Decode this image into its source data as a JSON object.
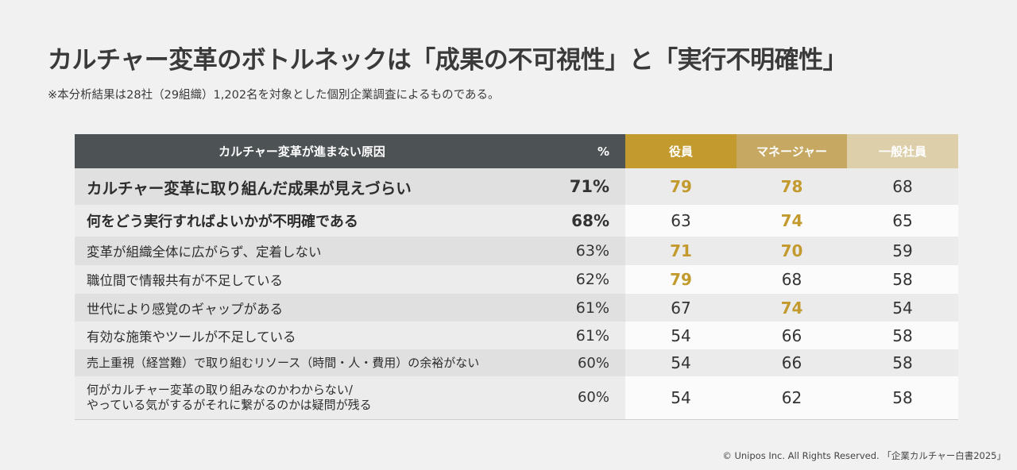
{
  "title": "カルチャー変革のボトルネックは「成果の不可視性」と「実行不明確性」",
  "note": "※本分析結果は28社（29組織）1,202名を対象とした個別企業調査によるものである。",
  "footer": "© Unipos Inc. All Rights Reserved. 「企業カルチャー白書2025」",
  "colors": {
    "header_dark": "#4d5254",
    "executive": "#c39a2e",
    "manager": "#c6a863",
    "staff": "#ddcfa9",
    "highlight_text": "#c39a2e"
  },
  "chart_data": {
    "type": "table",
    "columns": [
      "カルチャー変革が進まない原因",
      "%",
      "役員",
      "マネージャー",
      "一般社員"
    ],
    "rows": [
      {
        "reason": [
          "カルチャー変革に取り組んだ成果が見えづらい"
        ],
        "pct": "71%",
        "executive": "79",
        "manager": "78",
        "staff": "68",
        "highlight": [
          "executive",
          "manager"
        ]
      },
      {
        "reason": [
          "何をどう実行すればよいかが不明確である"
        ],
        "pct": "68%",
        "executive": "63",
        "manager": "74",
        "staff": "65",
        "highlight": [
          "manager"
        ]
      },
      {
        "reason": [
          "変革が組織全体に広がらず、定着しない"
        ],
        "pct": "63%",
        "executive": "71",
        "manager": "70",
        "staff": "59",
        "highlight": [
          "executive",
          "manager"
        ]
      },
      {
        "reason": [
          "職位間で情報共有が不足している"
        ],
        "pct": "62%",
        "executive": "79",
        "manager": "68",
        "staff": "58",
        "highlight": [
          "executive"
        ]
      },
      {
        "reason": [
          "世代により感覚のギャップがある"
        ],
        "pct": "61%",
        "executive": "67",
        "manager": "74",
        "staff": "54",
        "highlight": [
          "manager"
        ]
      },
      {
        "reason": [
          "有効な施策やツールが不足している"
        ],
        "pct": "61%",
        "executive": "54",
        "manager": "66",
        "staff": "58",
        "highlight": []
      },
      {
        "reason": [
          "売上重視（経営難）で取り組むリソース（時間・人・費用）の余裕がない"
        ],
        "pct": "60%",
        "executive": "54",
        "manager": "66",
        "staff": "58",
        "highlight": []
      },
      {
        "reason": [
          "何がカルチャー変革の取り組みなのかわからない/",
          "やっている気がするがそれに繋がるのかは疑問が残る"
        ],
        "pct": "60%",
        "executive": "54",
        "manager": "62",
        "staff": "58",
        "highlight": []
      }
    ]
  }
}
